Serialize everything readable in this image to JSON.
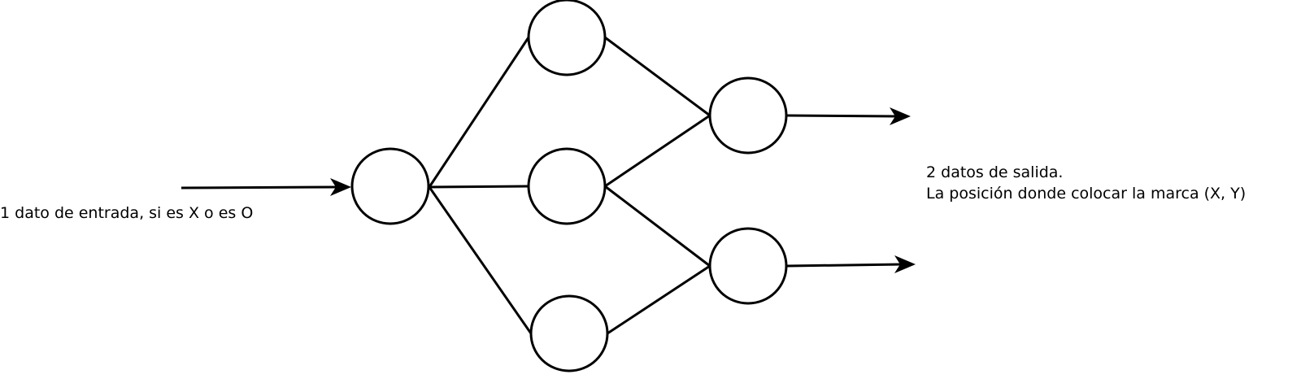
{
  "diagram": {
    "input_label": "1 dato de entrada, si es X o es O",
    "output_label_line1": "2 datos de salida.",
    "output_label_line2": "La posición donde colocar la marca (X, Y)",
    "stroke_color": "#000000",
    "background_color": "#ffffff"
  }
}
